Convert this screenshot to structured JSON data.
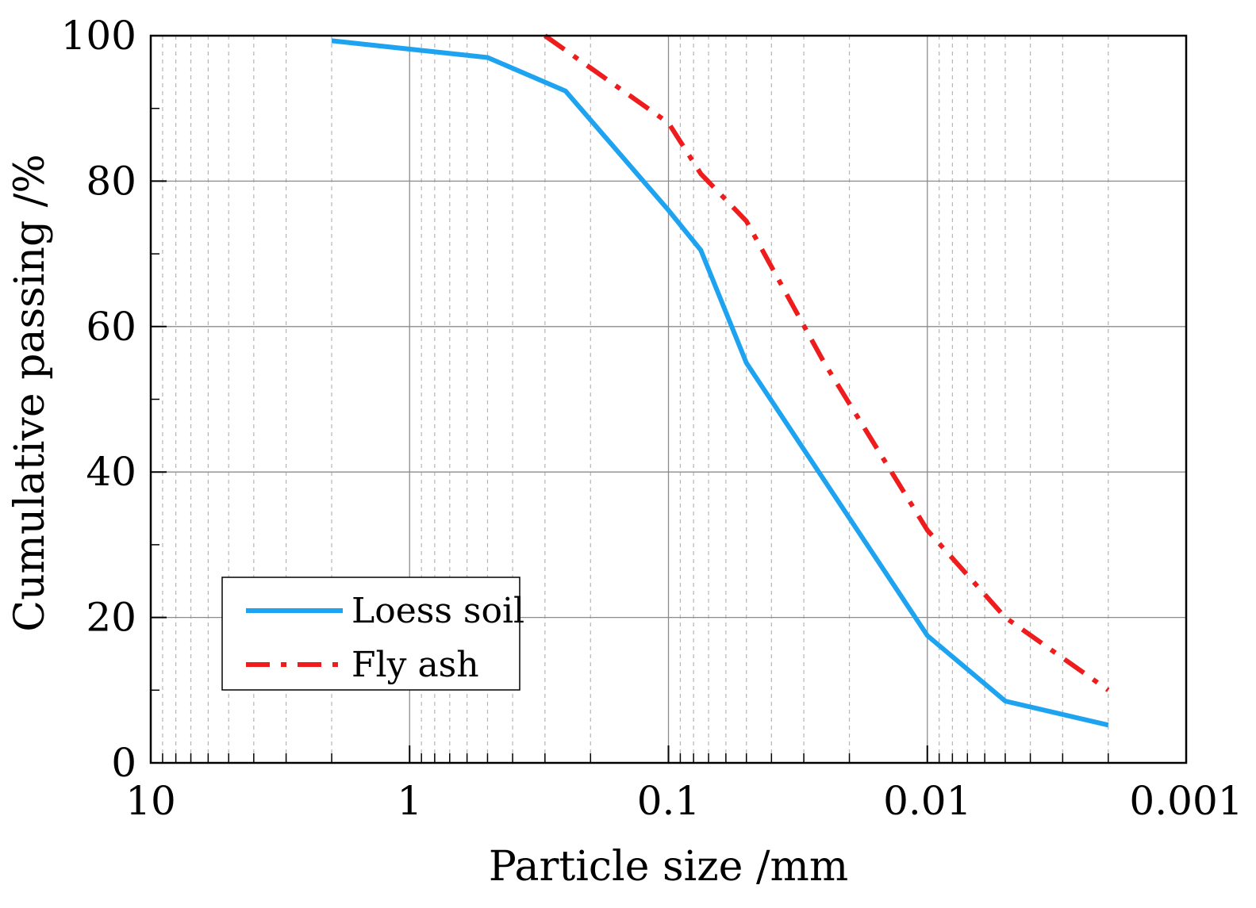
{
  "chart_data": {
    "type": "line",
    "title": "",
    "xlabel": "Particle size /mm",
    "ylabel": "Cumulative passing /%",
    "xscale": "log",
    "x_reversed": true,
    "xlim": [
      10,
      0.001
    ],
    "ylim": [
      0,
      100
    ],
    "x_ticks": [
      10,
      1,
      0.1,
      0.01,
      0.001
    ],
    "x_tick_labels": [
      "10",
      "1",
      "0.1",
      "0.01",
      "0.001"
    ],
    "y_ticks": [
      0,
      20,
      40,
      60,
      80,
      100
    ],
    "y_tick_labels": [
      "0",
      "20",
      "40",
      "60",
      "80",
      "100"
    ],
    "grid": true,
    "legend_position": "bottom-left",
    "series": [
      {
        "name": "Loess soil",
        "color": "#1ea3f0",
        "style": "solid",
        "x": [
          2,
          0.5,
          0.25,
          0.1,
          0.075,
          0.05,
          0.01,
          0.005,
          0.002
        ],
        "y": [
          99.3,
          97,
          92.4,
          76,
          70.5,
          55,
          17.5,
          8.5,
          5.2
        ]
      },
      {
        "name": "Fly ash",
        "color": "#ee1c1c",
        "style": "dashdot",
        "x": [
          0.3,
          0.1,
          0.075,
          0.05,
          0.025,
          0.01,
          0.005,
          0.002
        ],
        "y": [
          100,
          88,
          81,
          74.5,
          55,
          32,
          20,
          10
        ]
      }
    ]
  }
}
